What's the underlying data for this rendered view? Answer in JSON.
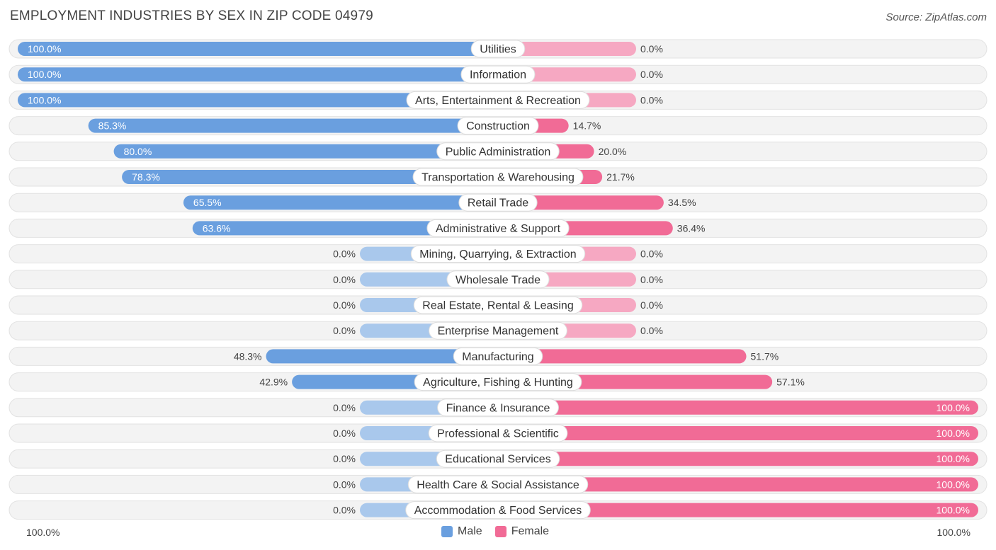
{
  "header": {
    "title": "EMPLOYMENT INDUSTRIES BY SEX IN ZIP CODE 04979",
    "source": "Source: ZipAtlas.com"
  },
  "colors": {
    "male": "#6a9fdf",
    "male_light": "#a9c8ec",
    "female": "#f16b96",
    "female_light": "#f6a8c2",
    "row_bg": "#efefef"
  },
  "legend": {
    "male_label": "Male",
    "female_label": "Female",
    "left_axis": "100.0%",
    "right_axis": "100.0%"
  },
  "chart_data": {
    "type": "bar",
    "orientation": "diverging-horizontal",
    "title": "EMPLOYMENT INDUSTRIES BY SEX IN ZIP CODE 04979",
    "xlim": [
      -100,
      100
    ],
    "categories": [
      "Utilities",
      "Information",
      "Arts, Entertainment & Recreation",
      "Construction",
      "Public Administration",
      "Transportation & Warehousing",
      "Retail Trade",
      "Administrative & Support",
      "Mining, Quarrying, & Extraction",
      "Wholesale Trade",
      "Real Estate, Rental & Leasing",
      "Enterprise Management",
      "Manufacturing",
      "Agriculture, Fishing & Hunting",
      "Finance & Insurance",
      "Professional & Scientific",
      "Educational Services",
      "Health Care & Social Assistance",
      "Accommodation & Food Services"
    ],
    "series": [
      {
        "name": "Male",
        "values": [
          100.0,
          100.0,
          100.0,
          85.3,
          80.0,
          78.3,
          65.5,
          63.6,
          0.0,
          0.0,
          0.0,
          0.0,
          48.3,
          42.9,
          0.0,
          0.0,
          0.0,
          0.0,
          0.0
        ],
        "labels": [
          "100.0%",
          "100.0%",
          "100.0%",
          "85.3%",
          "80.0%",
          "78.3%",
          "65.5%",
          "63.6%",
          "0.0%",
          "0.0%",
          "0.0%",
          "0.0%",
          "48.3%",
          "42.9%",
          "0.0%",
          "0.0%",
          "0.0%",
          "0.0%",
          "0.0%"
        ]
      },
      {
        "name": "Female",
        "values": [
          0.0,
          0.0,
          0.0,
          14.7,
          20.0,
          21.7,
          34.5,
          36.4,
          0.0,
          0.0,
          0.0,
          0.0,
          51.7,
          57.1,
          100.0,
          100.0,
          100.0,
          100.0,
          100.0
        ],
        "labels": [
          "0.0%",
          "0.0%",
          "0.0%",
          "14.7%",
          "20.0%",
          "21.7%",
          "34.5%",
          "36.4%",
          "0.0%",
          "0.0%",
          "0.0%",
          "0.0%",
          "51.7%",
          "57.1%",
          "100.0%",
          "100.0%",
          "100.0%",
          "100.0%",
          "100.0%"
        ]
      }
    ],
    "legend_position": "bottom-center"
  }
}
